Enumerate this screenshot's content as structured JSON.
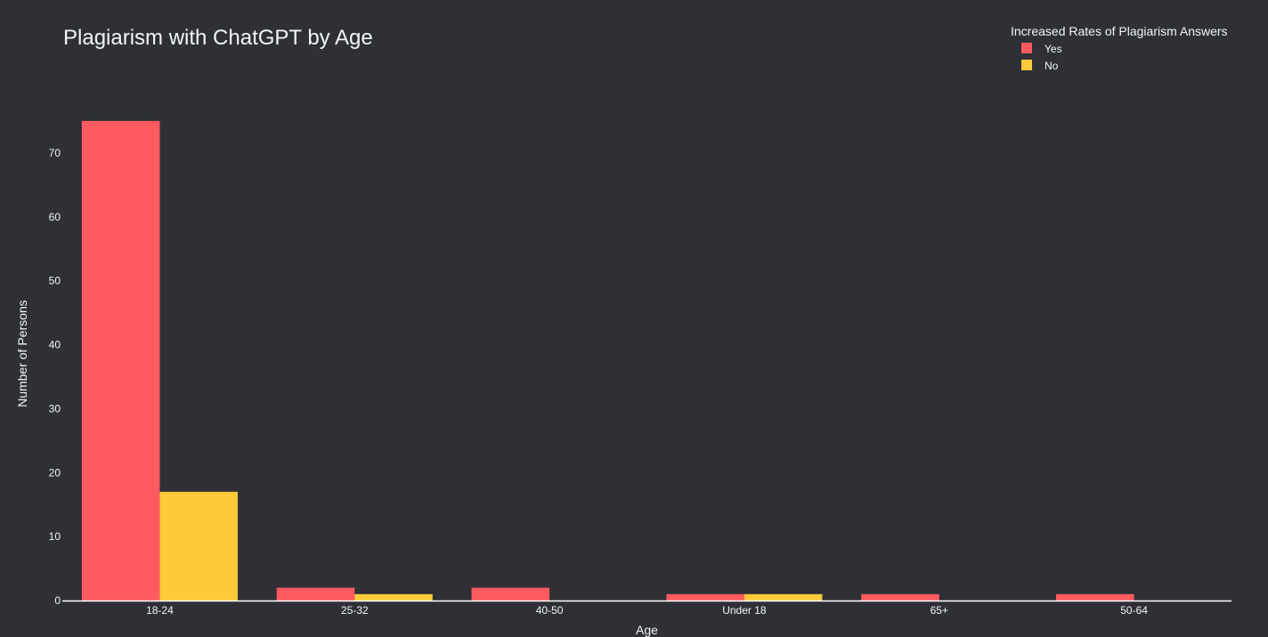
{
  "chart_data": {
    "type": "bar",
    "title": "Plagiarism with ChatGPT by Age",
    "xlabel": "Age",
    "ylabel": "Number of Persons",
    "categories": [
      "18-24",
      "25-32",
      "40-50",
      "Under 18",
      "65+",
      "50-64"
    ],
    "series": [
      {
        "name": "Yes",
        "color": "#ff5a5f",
        "values": [
          75,
          2,
          2,
          1,
          1,
          1
        ]
      },
      {
        "name": "No",
        "color": "#ffca3a",
        "values": [
          17,
          1,
          0,
          1,
          0,
          0
        ]
      }
    ],
    "ylim": [
      0,
      80
    ],
    "yticks": [
      0,
      10,
      20,
      30,
      40,
      50,
      60,
      70
    ],
    "legend": {
      "title": "Increased Rates of Plagiarism Answers",
      "position": "top-right"
    },
    "grid": false,
    "background": "#2e3035"
  }
}
